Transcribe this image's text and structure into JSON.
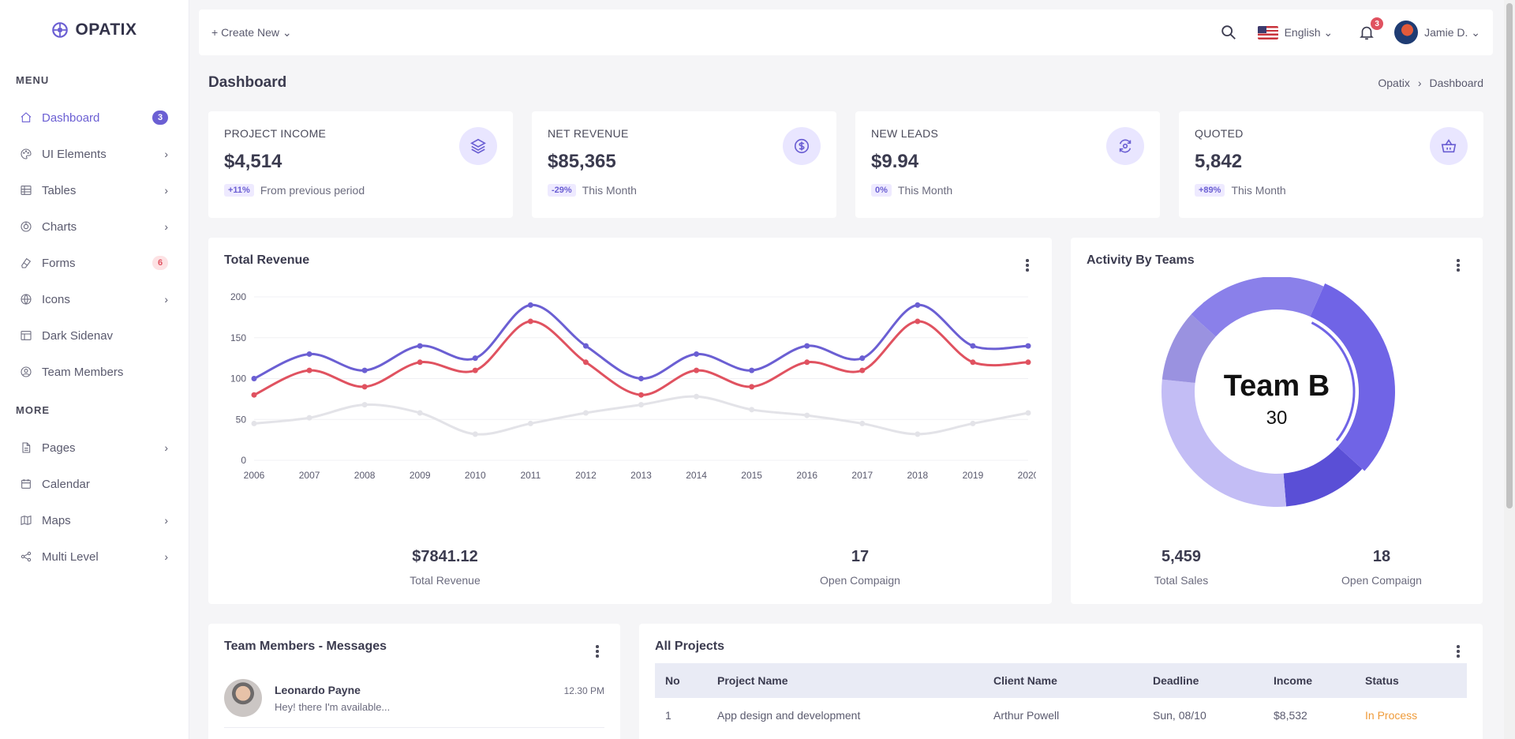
{
  "brand": {
    "name": "OPATIX"
  },
  "sidebar": {
    "menu_title": "MENU",
    "more_title": "MORE",
    "items": [
      {
        "label": "Dashboard",
        "badge": "3",
        "icon": "home-icon"
      },
      {
        "label": "UI Elements",
        "icon": "palette-icon"
      },
      {
        "label": "Tables",
        "icon": "table-icon"
      },
      {
        "label": "Charts",
        "icon": "chart-icon"
      },
      {
        "label": "Forms",
        "badge": "6",
        "icon": "eraser-icon"
      },
      {
        "label": "Icons",
        "icon": "globe-icon"
      },
      {
        "label": "Dark Sidenav",
        "icon": "layout-icon"
      },
      {
        "label": "Team Members",
        "icon": "user-circle-icon"
      }
    ],
    "more_items": [
      {
        "label": "Pages",
        "icon": "file-icon"
      },
      {
        "label": "Calendar",
        "icon": "calendar-icon"
      },
      {
        "label": "Maps",
        "icon": "map-icon"
      },
      {
        "label": "Multi Level",
        "icon": "share-icon"
      }
    ]
  },
  "topbar": {
    "create_new": "+ Create New ⌄",
    "language": "English ⌄",
    "notifications": "3",
    "user": "Jamie D. ⌄"
  },
  "page": {
    "title": "Dashboard",
    "breadcrumb": [
      "Opatix",
      "›",
      "Dashboard"
    ]
  },
  "stats": [
    {
      "title": "PROJECT INCOME",
      "value": "$4,514",
      "chip": "+11%",
      "note": "From previous period",
      "icon": "layers-icon"
    },
    {
      "title": "NET REVENUE",
      "value": "$85,365",
      "chip": "-29%",
      "note": "This Month",
      "icon": "dollar-icon"
    },
    {
      "title": "NEW LEADS",
      "value": "$9.94",
      "chip": "0%",
      "note": "This Month",
      "icon": "refresh-icon"
    },
    {
      "title": "QUOTED",
      "value": "5,842",
      "chip": "+89%",
      "note": "This Month",
      "icon": "basket-icon"
    }
  ],
  "revenue": {
    "title": "Total Revenue",
    "summary": [
      {
        "value": "$7841.12",
        "label": "Total Revenue"
      },
      {
        "value": "17",
        "label": "Open Compaign"
      }
    ]
  },
  "activity": {
    "title": "Activity By Teams",
    "center_label": "Team B",
    "center_value": "30",
    "summary": [
      {
        "value": "5,459",
        "label": "Total Sales"
      },
      {
        "value": "18",
        "label": "Open Compaign"
      }
    ]
  },
  "messages": {
    "title": "Team Members - Messages",
    "items": [
      {
        "name": "Leonardo Payne",
        "text": "Hey! there I'm available...",
        "time": "12.30 PM"
      }
    ]
  },
  "projects": {
    "title": "All Projects",
    "columns": [
      "No",
      "Project Name",
      "Client Name",
      "Deadline",
      "Income",
      "Status"
    ],
    "rows": [
      {
        "no": "1",
        "name": "App design and development",
        "client": "Arthur Powell",
        "deadline": "Sun, 08/10",
        "income": "$8,532",
        "status": "In Process"
      }
    ]
  },
  "chart_data": [
    {
      "type": "line",
      "categories": [
        "2006",
        "2007",
        "2008",
        "2009",
        "2010",
        "2011",
        "2012",
        "2013",
        "2014",
        "2015",
        "2016",
        "2017",
        "2018",
        "2019",
        "2020"
      ],
      "y_ticks": [
        "0",
        "50",
        "100",
        "150",
        "200"
      ],
      "ylim": [
        0,
        200
      ],
      "series": [
        {
          "values": [
            100,
            130,
            110,
            140,
            125,
            190,
            140,
            100,
            130,
            110,
            140,
            125,
            190,
            140,
            140
          ],
          "color": "#6b5fd3"
        },
        {
          "values": [
            80,
            110,
            90,
            120,
            110,
            170,
            120,
            80,
            110,
            90,
            120,
            110,
            170,
            120,
            120
          ],
          "color": "#e05260"
        },
        {
          "values": [
            45,
            52,
            68,
            58,
            32,
            45,
            58,
            68,
            78,
            62,
            55,
            45,
            32,
            45,
            58
          ],
          "color": "#e3e3e8"
        }
      ]
    },
    {
      "type": "pie",
      "segments": [
        {
          "value": 30,
          "color": "#7064e6"
        },
        {
          "value": 12,
          "color": "#5a4fd6"
        },
        {
          "value": 28,
          "color": "#c3bdf5"
        },
        {
          "value": 10,
          "color": "#9a92e0"
        },
        {
          "value": 20,
          "color": "#8a80ea"
        }
      ]
    }
  ]
}
